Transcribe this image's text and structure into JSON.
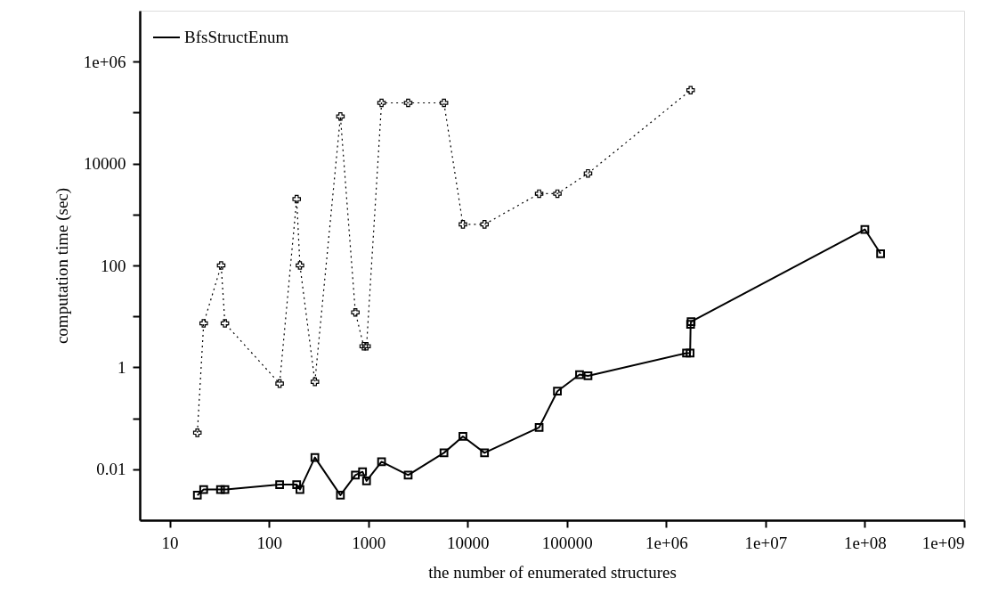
{
  "chart_data": {
    "type": "line",
    "xlabel": "the number of enumerated structures",
    "ylabel": "computation time (sec)",
    "log": "xy",
    "xlim": [
      5,
      1000000000
    ],
    "ylim": [
      0.001,
      10000000
    ],
    "xticks": [
      10,
      100,
      1000,
      10000,
      100000,
      {
        "value": 1000000,
        "label": "1e+06"
      },
      {
        "value": 10000000,
        "label": "1e+07"
      },
      {
        "value": 100000000,
        "label": "1e+08"
      },
      {
        "value": 1000000000,
        "label": "1e+09"
      }
    ],
    "yticks": [
      0.01,
      {
        "value": 0.1,
        "label": null
      },
      1,
      {
        "value": 10,
        "label": null
      },
      100,
      {
        "value": 1000,
        "label": null
      },
      10000,
      {
        "value": 100000,
        "label": null
      },
      {
        "value": 1000000,
        "label": "1e+06"
      }
    ],
    "grid": false,
    "legend": "top left",
    "series": [
      {
        "name": "BfsStructEnum",
        "color": "#000000",
        "marker": "square",
        "line_style": "solid",
        "x": [
          19,
          22,
          32.5,
          36,
          128,
          190,
          205,
          290,
          524,
          741,
          875,
          960,
          1360,
          2520,
          5780,
          8970,
          14800,
          52500,
          80200,
          134000,
          163000,
          1600000,
          1740000,
          1760000,
          1780000,
          100000000,
          144000000
        ],
        "values": [
          0.0031,
          0.004,
          0.004,
          0.004,
          0.005,
          0.005,
          0.004,
          0.017,
          0.0031,
          0.0077,
          0.0089,
          0.0059,
          0.014,
          0.0077,
          0.021,
          0.044,
          0.021,
          0.066,
          0.34,
          0.72,
          0.68,
          1.9,
          1.9,
          7.0,
          7.9,
          510,
          170
        ]
      },
      {
        "color": "#000000",
        "marker": "cross",
        "line_style": "dotted",
        "x": [
          19,
          22,
          33,
          36,
          128,
          190,
          205,
          290,
          524,
          741,
          900,
          960,
          1360,
          2520,
          5780,
          8970,
          14800,
          52500,
          80200,
          163000,
          1760000
        ],
        "values": [
          0.052,
          7.3,
          100,
          7.3,
          0.48,
          2000,
          100,
          0.52,
          84000,
          12,
          2.6,
          2.6,
          155000,
          155000,
          155000,
          640,
          640,
          2560,
          2560,
          6400,
          275000
        ]
      }
    ]
  }
}
